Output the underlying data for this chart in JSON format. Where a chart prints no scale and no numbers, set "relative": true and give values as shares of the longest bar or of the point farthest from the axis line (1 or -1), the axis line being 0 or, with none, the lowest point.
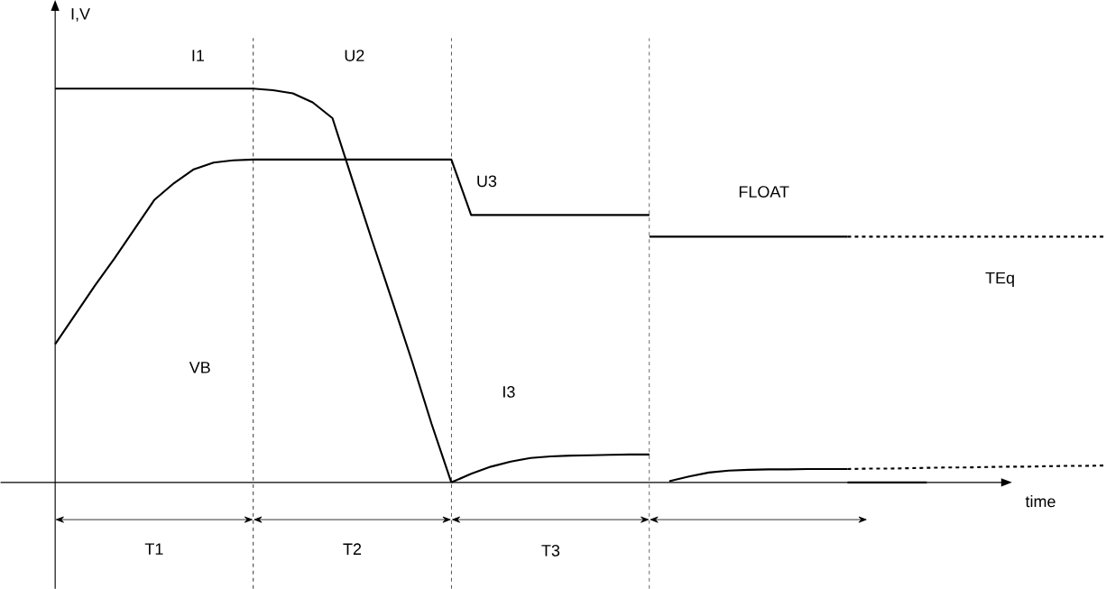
{
  "chart_data": {
    "type": "line",
    "relative": true,
    "xlabel": "time",
    "ylabel": "I,V",
    "categories": [
      null,
      null,
      null,
      null,
      null,
      null,
      null,
      null,
      null,
      null,
      null,
      null,
      null,
      null,
      null,
      null,
      null,
      null,
      null,
      null,
      null,
      null,
      null,
      null,
      null,
      null,
      null,
      null,
      null,
      null,
      null,
      null,
      null,
      null,
      null,
      null,
      null,
      null,
      null,
      null,
      null,
      null,
      null,
      null,
      null,
      null,
      null,
      null,
      null,
      null,
      null,
      null,
      null,
      null
    ],
    "series": [
      {
        "color": "#000000",
        "values": [
          1,
          1,
          1,
          1,
          1,
          1,
          1,
          1,
          1,
          1,
          1,
          0.996,
          0.988,
          0.965,
          0.925,
          0.769,
          0.614,
          0.463,
          0.31,
          0.149,
          0,
          null,
          null,
          null,
          null,
          null,
          null,
          null,
          null,
          null,
          null,
          null,
          null,
          null,
          null,
          null,
          null,
          null,
          null,
          null,
          null,
          null,
          null,
          null,
          null,
          null,
          null,
          null,
          null,
          null,
          null,
          null,
          null,
          null
        ]
      },
      {
        "color": "#000000",
        "values": [
          null,
          null,
          null,
          null,
          null,
          null,
          null,
          null,
          null,
          null,
          null,
          null,
          null,
          null,
          null,
          null,
          null,
          null,
          null,
          null,
          0,
          0.022,
          0.04,
          0.053,
          0.062,
          0.066,
          0.068,
          0.069,
          0.07,
          0.071,
          0.071,
          null,
          null,
          null,
          null,
          null,
          null,
          null,
          null,
          null,
          null,
          null,
          null,
          null,
          null,
          null,
          null,
          null,
          null,
          null,
          null,
          null,
          null,
          null
        ]
      },
      {
        "color": "#000000",
        "values": [
          null,
          null,
          null,
          null,
          null,
          null,
          null,
          null,
          null,
          null,
          null,
          null,
          null,
          null,
          null,
          null,
          null,
          null,
          null,
          null,
          null,
          null,
          null,
          null,
          null,
          null,
          null,
          null,
          null,
          null,
          null,
          0.003,
          0.015,
          0.025,
          0.03,
          0.032,
          0.033,
          0.033,
          0.034,
          0.034,
          0.034,
          null,
          null,
          null,
          null,
          null,
          null,
          null,
          null,
          null,
          null,
          null,
          null,
          null
        ]
      },
      {
        "color": "#000000",
        "line_style": "dashed",
        "values": [
          null,
          null,
          null,
          null,
          null,
          null,
          null,
          null,
          null,
          null,
          null,
          null,
          null,
          null,
          null,
          null,
          null,
          null,
          null,
          null,
          null,
          null,
          null,
          null,
          null,
          null,
          null,
          null,
          null,
          null,
          null,
          null,
          null,
          null,
          null,
          null,
          null,
          null,
          null,
          null,
          0.034,
          0.035,
          0.035,
          0.036,
          0.037,
          0.038,
          0.038,
          0.039,
          0.04,
          0.04,
          0.041,
          0.042,
          0.042,
          0.043
        ]
      },
      {
        "color": "#000000",
        "values": [
          0.351,
          0.425,
          0.499,
          0.569,
          0.643,
          0.717,
          0.76,
          0.795,
          0.812,
          0.818,
          0.82,
          0.82,
          0.82,
          0.82,
          0.82,
          0.82,
          0.82,
          0.82,
          0.82,
          0.82,
          0.82,
          0.679,
          0.679,
          0.679,
          0.679,
          0.679,
          0.679,
          0.679,
          0.679,
          0.679,
          0.679,
          null,
          null,
          null,
          null,
          null,
          null,
          null,
          null,
          null,
          null,
          null,
          null,
          null,
          null,
          null,
          null,
          null,
          null,
          null,
          null,
          null,
          null,
          null
        ]
      },
      {
        "color": "#000000",
        "values": [
          null,
          null,
          null,
          null,
          null,
          null,
          null,
          null,
          null,
          null,
          null,
          null,
          null,
          null,
          null,
          null,
          null,
          null,
          null,
          null,
          null,
          null,
          null,
          null,
          null,
          null,
          null,
          null,
          null,
          null,
          null,
          null,
          null,
          null,
          null,
          null,
          null,
          null,
          null,
          null,
          0,
          0,
          0,
          0,
          0,
          null,
          null,
          null,
          null,
          null,
          null,
          null,
          null,
          null
        ]
      },
      {
        "color": "#000000",
        "values": [
          null,
          null,
          null,
          null,
          null,
          null,
          null,
          null,
          null,
          null,
          null,
          null,
          null,
          null,
          null,
          null,
          null,
          null,
          null,
          null,
          null,
          null,
          null,
          null,
          null,
          null,
          null,
          null,
          null,
          null,
          0.624,
          0.624,
          0.624,
          0.624,
          0.624,
          0.624,
          0.624,
          0.624,
          0.624,
          0.624,
          0.624,
          null,
          null,
          null,
          null,
          null,
          null,
          null,
          null,
          null,
          null,
          null,
          null,
          null
        ]
      },
      {
        "color": "#000000",
        "line_style": "dashed",
        "values": [
          null,
          null,
          null,
          null,
          null,
          null,
          null,
          null,
          null,
          null,
          null,
          null,
          null,
          null,
          null,
          null,
          null,
          null,
          null,
          null,
          null,
          null,
          null,
          null,
          null,
          null,
          null,
          null,
          null,
          null,
          null,
          null,
          null,
          null,
          null,
          null,
          null,
          null,
          null,
          null,
          0.624,
          0.624,
          0.624,
          0.624,
          0.624,
          0.624,
          0.624,
          0.624,
          0.624,
          0.624,
          0.624,
          0.624,
          0.624,
          0.624
        ]
      }
    ],
    "annotations": [
      "I1",
      "U2",
      "U3",
      "FLOAT",
      "TEq",
      "VB",
      "I3",
      "T1",
      "T2",
      "T3"
    ]
  }
}
